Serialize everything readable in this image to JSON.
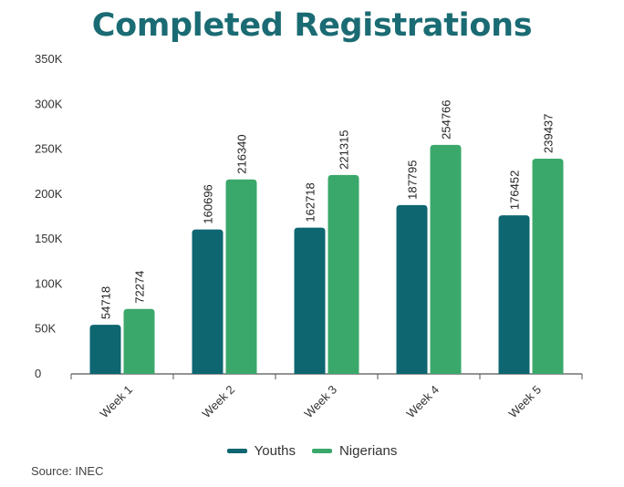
{
  "chart_data": {
    "type": "bar",
    "title": "Completed Registrations",
    "categories": [
      "Week 1",
      "Week 2",
      "Week 3",
      "Week 4",
      "Week 5"
    ],
    "series": [
      {
        "name": "Youths",
        "color": "#0d6670",
        "values": [
          54718,
          160696,
          162718,
          187795,
          176452
        ]
      },
      {
        "name": "Nigerians",
        "color": "#3ba86b",
        "values": [
          72274,
          216340,
          221315,
          254766,
          239437
        ]
      }
    ],
    "y_ticks": [
      0,
      50000,
      100000,
      150000,
      200000,
      250000,
      300000,
      350000
    ],
    "y_tick_labels": [
      "0",
      "50K",
      "100K",
      "150K",
      "200K",
      "250K",
      "300K",
      "350K"
    ],
    "ylim": [
      0,
      350000
    ],
    "grid": false,
    "legend_position": "bottom",
    "data_labels": true
  },
  "source": "Source: INEC"
}
